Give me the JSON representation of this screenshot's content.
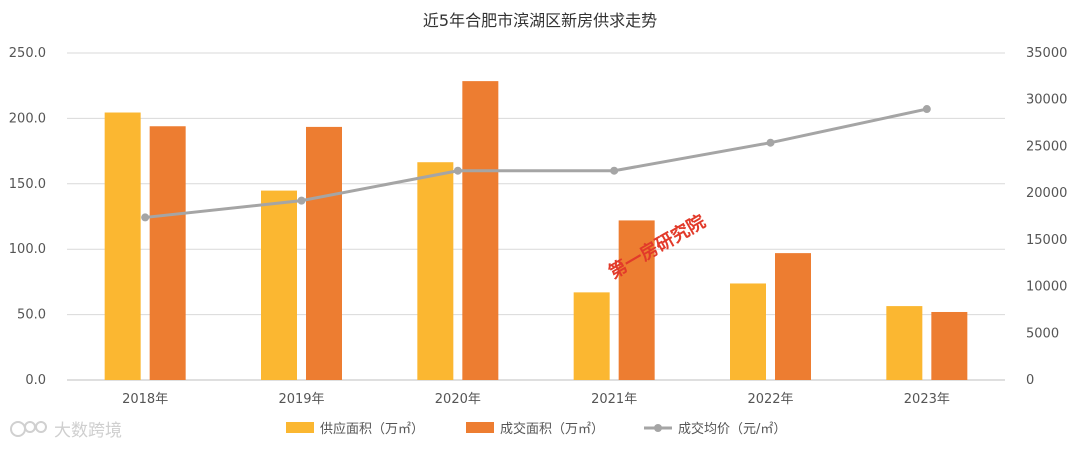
{
  "chart_data": {
    "type": "bar",
    "title": "近5年合肥市滨湖区新房供求走势",
    "categories": [
      "2018年",
      "2019年",
      "2020年",
      "2021年",
      "2022年",
      "2023年"
    ],
    "series": [
      {
        "name": "供应面积（万㎡）",
        "kind": "bar",
        "axis": "left",
        "color": "#FBB731",
        "values": [
          204.5,
          144.8,
          166.5,
          67.0,
          73.8,
          56.5
        ]
      },
      {
        "name": "成交面积（万㎡）",
        "kind": "bar",
        "axis": "left",
        "color": "#ED7D31",
        "values": [
          194.0,
          193.5,
          228.5,
          122.0,
          97.0,
          52.0
        ]
      },
      {
        "name": "成交均价（元/㎡）",
        "kind": "line",
        "axis": "right",
        "color": "#A5A5A5",
        "values": [
          17400,
          19200,
          22400,
          22400,
          25400,
          29000
        ]
      }
    ],
    "y_left": {
      "min": 0,
      "max": 250,
      "ticks": [
        "0.0",
        "50.0",
        "100.0",
        "150.0",
        "200.0",
        "250.0"
      ]
    },
    "y_right": {
      "min": 0,
      "max": 35000,
      "ticks": [
        "0",
        "5000",
        "10000",
        "15000",
        "20000",
        "25000",
        "30000",
        "35000"
      ]
    },
    "grid": true,
    "legend_position": "bottom"
  },
  "watermark": {
    "text": "第一房研究院"
  },
  "brand": {
    "text": "大数跨境"
  }
}
